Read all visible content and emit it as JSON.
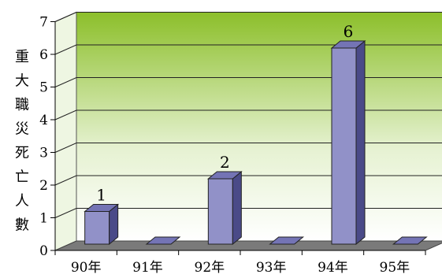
{
  "chart_data": {
    "type": "bar",
    "categories": [
      "90年",
      "91年",
      "92年",
      "93年",
      "94年",
      "95年"
    ],
    "values": [
      1,
      0,
      2,
      0,
      6,
      0
    ],
    "data_labels": [
      "1",
      "",
      "2",
      "",
      "6",
      ""
    ],
    "ylabel": "重大職災死亡人數",
    "yticks": [
      "0",
      "1",
      "2",
      "3",
      "4",
      "5",
      "6",
      "7"
    ],
    "ylim": [
      0,
      7
    ],
    "grid": true,
    "legend": "none",
    "colors": {
      "bar_front": "#9191c8",
      "bar_top": "#7474b5",
      "bar_side": "#4a4a88",
      "wall_top": "#8cbf2a",
      "wall_bottom": "#ffffff",
      "floor": "#7a7a7a"
    }
  }
}
